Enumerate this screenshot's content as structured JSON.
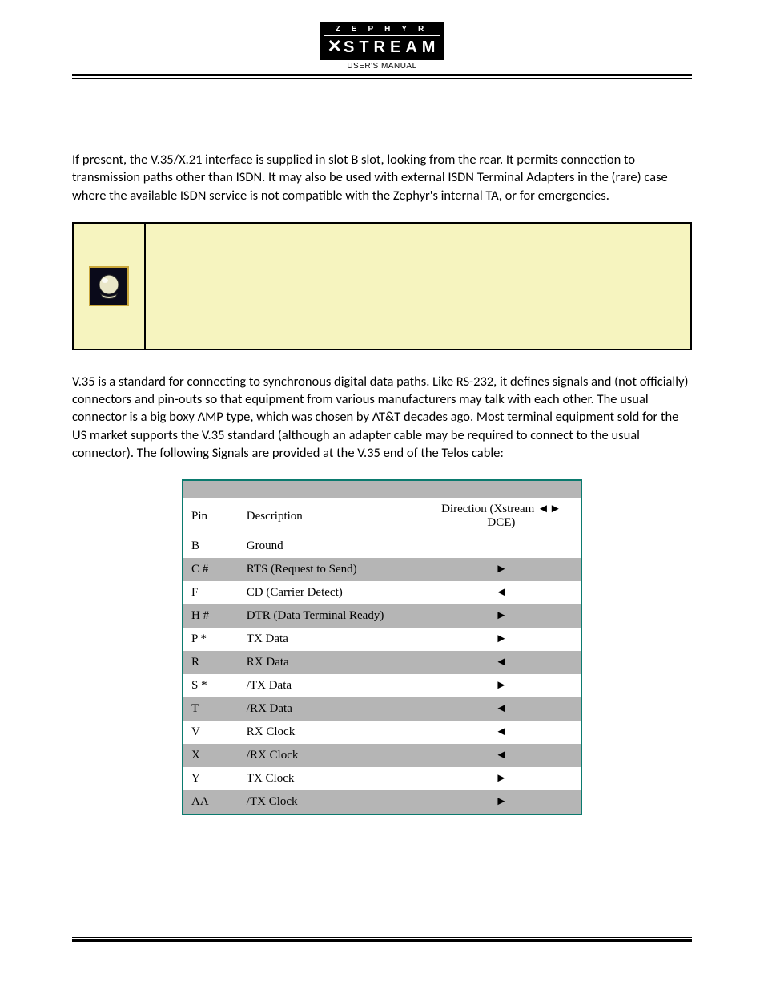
{
  "logo": {
    "top": "ZEPHYR",
    "bottom_prefix": "✕",
    "bottom": "STREAM"
  },
  "header_subcaption": "USER'S MANUAL",
  "paragraphs": {
    "p1": "If present, the V.35/X.21 interface is supplied in slot B slot, looking from the rear. It permits connection to transmission paths other than ISDN.  It may also be used with external ISDN Terminal Adapters in the (rare) case where the available ISDN service is not compatible with the Zephyr's internal TA, or for emergencies.",
    "p2": "V.35 is a standard for connecting to synchronous digital data paths.  Like RS-232, it defines signals and (not officially) connectors and pin-outs so that equipment from various manufacturers may talk with each other.  The usual connector is a big boxy AMP type, which was chosen by AT&T decades ago.  Most terminal equipment sold for the US market supports the V.35 standard (although an adapter cable may be required to connect to the usual connector).  The following Signals are provided at the V.35 end of the Telos cable:"
  },
  "callout": {
    "icon_name": "crystal-ball-icon",
    "icon_border_color": "#c9a63a",
    "icon_bg_color": "#0a0a1a",
    "panel_bg_color": "#f6f4bf"
  },
  "table": {
    "border_color": "#0a7a6e",
    "row_alt_bg": "#b5b5b5",
    "row_bg": "#ffffff",
    "font_family": "Times New Roman",
    "header": {
      "pin": "Pin",
      "desc": "Description",
      "dir": "Direction (Xstream ◄► DCE)"
    },
    "rows": [
      {
        "pin": "B",
        "desc": "Ground",
        "dir": ""
      },
      {
        "pin": "C #",
        "desc": "RTS (Request to Send)",
        "dir": "►"
      },
      {
        "pin": "F",
        "desc": "CD (Carrier Detect)",
        "dir": "◄"
      },
      {
        "pin": "H #",
        "desc": "DTR (Data Terminal Ready)",
        "dir": "►"
      },
      {
        "pin": "P *",
        "desc": "TX Data",
        "dir": "►"
      },
      {
        "pin": "R",
        "desc": "RX Data",
        "dir": "◄"
      },
      {
        "pin": "S *",
        "desc": "/TX Data",
        "dir": "►"
      },
      {
        "pin": "T",
        "desc": "/RX Data",
        "dir": "◄"
      },
      {
        "pin": "V",
        "desc": "RX Clock",
        "dir": "◄"
      },
      {
        "pin": "X",
        "desc": "/RX Clock",
        "dir": "◄"
      },
      {
        "pin": "Y",
        "desc": "TX Clock",
        "dir": "►"
      },
      {
        "pin": "AA",
        "desc": "/TX Clock",
        "dir": "►"
      }
    ]
  }
}
